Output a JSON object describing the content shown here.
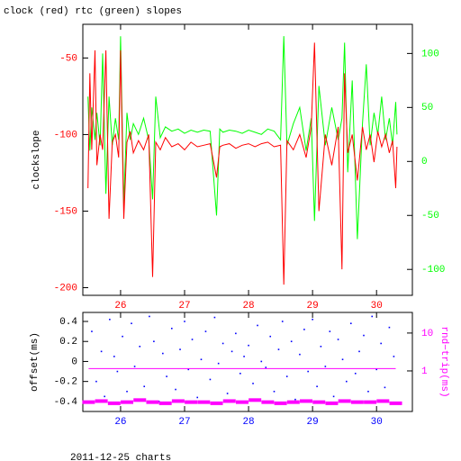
{
  "footer": "2011-12-25 charts",
  "chart_data": [
    {
      "type": "line",
      "title": "clock (red) rtc (green) slopes",
      "ylabel": "clockslope",
      "xlim": [
        25.41,
        30.56
      ],
      "xticks": [
        26,
        27,
        28,
        29,
        30
      ],
      "xtick_color": "#ff0000",
      "ylim": [
        -205,
        -28
      ],
      "yticks": [
        -200,
        -150,
        -100,
        -50
      ],
      "ytick_color": "#ff0000",
      "y2lim": [
        -124,
        127
      ],
      "y2ticks": [
        -100,
        -50,
        0,
        50,
        100
      ],
      "y2tick_color": "#00ff00",
      "x": [
        25.49,
        25.52,
        25.55,
        25.6,
        25.63,
        25.68,
        25.72,
        25.77,
        25.82,
        25.87,
        25.92,
        25.97,
        26.0,
        26.05,
        26.1,
        26.15,
        26.2,
        26.28,
        26.36,
        26.44,
        26.5,
        26.55,
        26.62,
        26.7,
        26.8,
        26.9,
        27.0,
        27.1,
        27.2,
        27.3,
        27.4,
        27.5,
        27.55,
        27.6,
        27.7,
        27.8,
        27.9,
        28.0,
        28.1,
        28.2,
        28.3,
        28.4,
        28.5,
        28.55,
        28.6,
        28.7,
        28.8,
        28.9,
        28.98,
        29.03,
        29.1,
        29.2,
        29.3,
        29.4,
        29.46,
        29.5,
        29.55,
        29.62,
        29.7,
        29.78,
        29.84,
        29.9,
        29.96,
        30.02,
        30.08,
        30.14,
        30.2,
        30.25,
        30.3,
        30.32
      ],
      "series": [
        {
          "color": "#00ff00",
          "axis": "y2",
          "values": [
            60,
            10,
            50,
            20,
            45,
            15,
            100,
            -30,
            60,
            15,
            40,
            20,
            116,
            -40,
            45,
            20,
            35,
            25,
            40,
            20,
            -35,
            60,
            22,
            32,
            28,
            30,
            26,
            29,
            27,
            29,
            28,
            -50,
            30,
            27,
            29,
            28,
            26,
            29,
            27,
            25,
            30,
            28,
            20,
            116,
            15,
            35,
            50,
            10,
            40,
            -55,
            70,
            15,
            50,
            20,
            40,
            110,
            -10,
            75,
            -72,
            35,
            90,
            15,
            45,
            25,
            60,
            20,
            40,
            15,
            55,
            25
          ]
        },
        {
          "color": "#ff0000",
          "axis": "y",
          "values": [
            -135,
            -60,
            -110,
            -45,
            -120,
            -100,
            -110,
            -45,
            -155,
            -105,
            -100,
            -115,
            -45,
            -155,
            -105,
            -98,
            -112,
            -104,
            -110,
            -100,
            -193,
            -105,
            -110,
            -102,
            -108,
            -106,
            -110,
            -105,
            -108,
            -107,
            -106,
            -128,
            -108,
            -107,
            -106,
            -109,
            -107,
            -106,
            -108,
            -106,
            -105,
            -108,
            -107,
            -198,
            -104,
            -110,
            -100,
            -115,
            -95,
            -40,
            -150,
            -100,
            -120,
            -95,
            -188,
            -60,
            -112,
            -100,
            -130,
            -95,
            -110,
            -100,
            -118,
            -98,
            -108,
            -100,
            -112,
            -104,
            -135,
            -108
          ]
        }
      ]
    },
    {
      "type": "scatter",
      "ylabel": "offset(ms)",
      "y2label": "rnd−trip(ms)",
      "y2log": true,
      "xlim": [
        25.41,
        30.56
      ],
      "xticks": [
        26,
        27,
        28,
        29,
        30
      ],
      "xtick_color": "#0000ff",
      "ylim": [
        -0.5,
        0.49
      ],
      "yticks": [
        -0.4,
        -0.2,
        0,
        0.2,
        0.4
      ],
      "ytick_color": "#000000",
      "y2lim": [
        0.085,
        35
      ],
      "y2ticks": [
        1,
        10
      ],
      "y2tick_color": "#ff00ff",
      "series": [
        {
          "color": "#0000ff",
          "axis": "y",
          "style": "dot",
          "x": [
            25.55,
            25.62,
            25.7,
            25.75,
            25.83,
            25.9,
            25.95,
            26.03,
            26.1,
            26.17,
            26.22,
            26.3,
            26.37,
            26.45,
            26.52,
            26.6,
            26.66,
            26.72,
            26.8,
            26.86,
            26.93,
            27.0,
            27.06,
            27.12,
            27.2,
            27.26,
            27.33,
            27.4,
            27.47,
            27.53,
            27.6,
            27.67,
            27.74,
            27.8,
            27.87,
            27.93,
            28.0,
            28.07,
            28.14,
            28.2,
            28.27,
            28.34,
            28.4,
            28.47,
            28.53,
            28.6,
            28.67,
            28.73,
            28.8,
            28.87,
            28.93,
            29.0,
            29.07,
            29.13,
            29.2,
            29.27,
            29.33,
            29.4,
            29.47,
            29.53,
            29.6,
            29.67,
            29.73,
            29.8,
            29.87,
            29.93,
            30.0,
            30.07,
            30.13,
            30.2,
            30.27
          ],
          "values": [
            0.3,
            -0.2,
            0.1,
            -0.35,
            0.42,
            0.05,
            -0.1,
            0.25,
            -0.3,
            0.38,
            -0.05,
            0.15,
            -0.25,
            0.45,
            0.2,
            -0.4,
            0.08,
            -0.15,
            0.33,
            -0.28,
            0.12,
            0.4,
            -0.08,
            0.22,
            -0.36,
            0.02,
            0.3,
            -0.18,
            0.44,
            -0.02,
            0.18,
            -0.32,
            0.1,
            0.28,
            -0.12,
            0.05,
            0.16,
            -0.22,
            0.36,
            0.0,
            -0.06,
            0.25,
            -0.3,
            0.12,
            0.4,
            -0.15,
            0.2,
            -0.38,
            0.07,
            0.32,
            -0.1,
            0.42,
            -0.25,
            0.15,
            -0.05,
            0.3,
            -0.35,
            0.22,
            0.02,
            -0.2,
            0.38,
            -0.12,
            0.1,
            0.26,
            -0.3,
            0.45,
            -0.08,
            0.18,
            -0.26,
            0.34,
            0.05
          ]
        },
        {
          "color": "#ff00ff",
          "axis": "y2",
          "style": "band",
          "x": [
            25.5,
            25.7,
            25.9,
            26.1,
            26.3,
            26.5,
            26.7,
            26.9,
            27.1,
            27.3,
            27.5,
            27.7,
            27.9,
            28.1,
            28.3,
            28.5,
            28.7,
            28.9,
            29.1,
            29.3,
            29.5,
            29.7,
            29.9,
            30.1,
            30.3
          ],
          "values": [
            0.15,
            0.16,
            0.14,
            0.15,
            0.17,
            0.15,
            0.14,
            0.16,
            0.15,
            0.15,
            0.14,
            0.16,
            0.15,
            0.17,
            0.15,
            0.14,
            0.15,
            0.16,
            0.15,
            0.14,
            0.16,
            0.15,
            0.15,
            0.16,
            0.14
          ]
        },
        {
          "color": "#ff00ff",
          "axis": "y2",
          "style": "line",
          "x": [
            25.5,
            27.0,
            28.5,
            30.3
          ],
          "values": [
            1.15,
            1.15,
            1.15,
            1.15
          ]
        }
      ]
    }
  ]
}
